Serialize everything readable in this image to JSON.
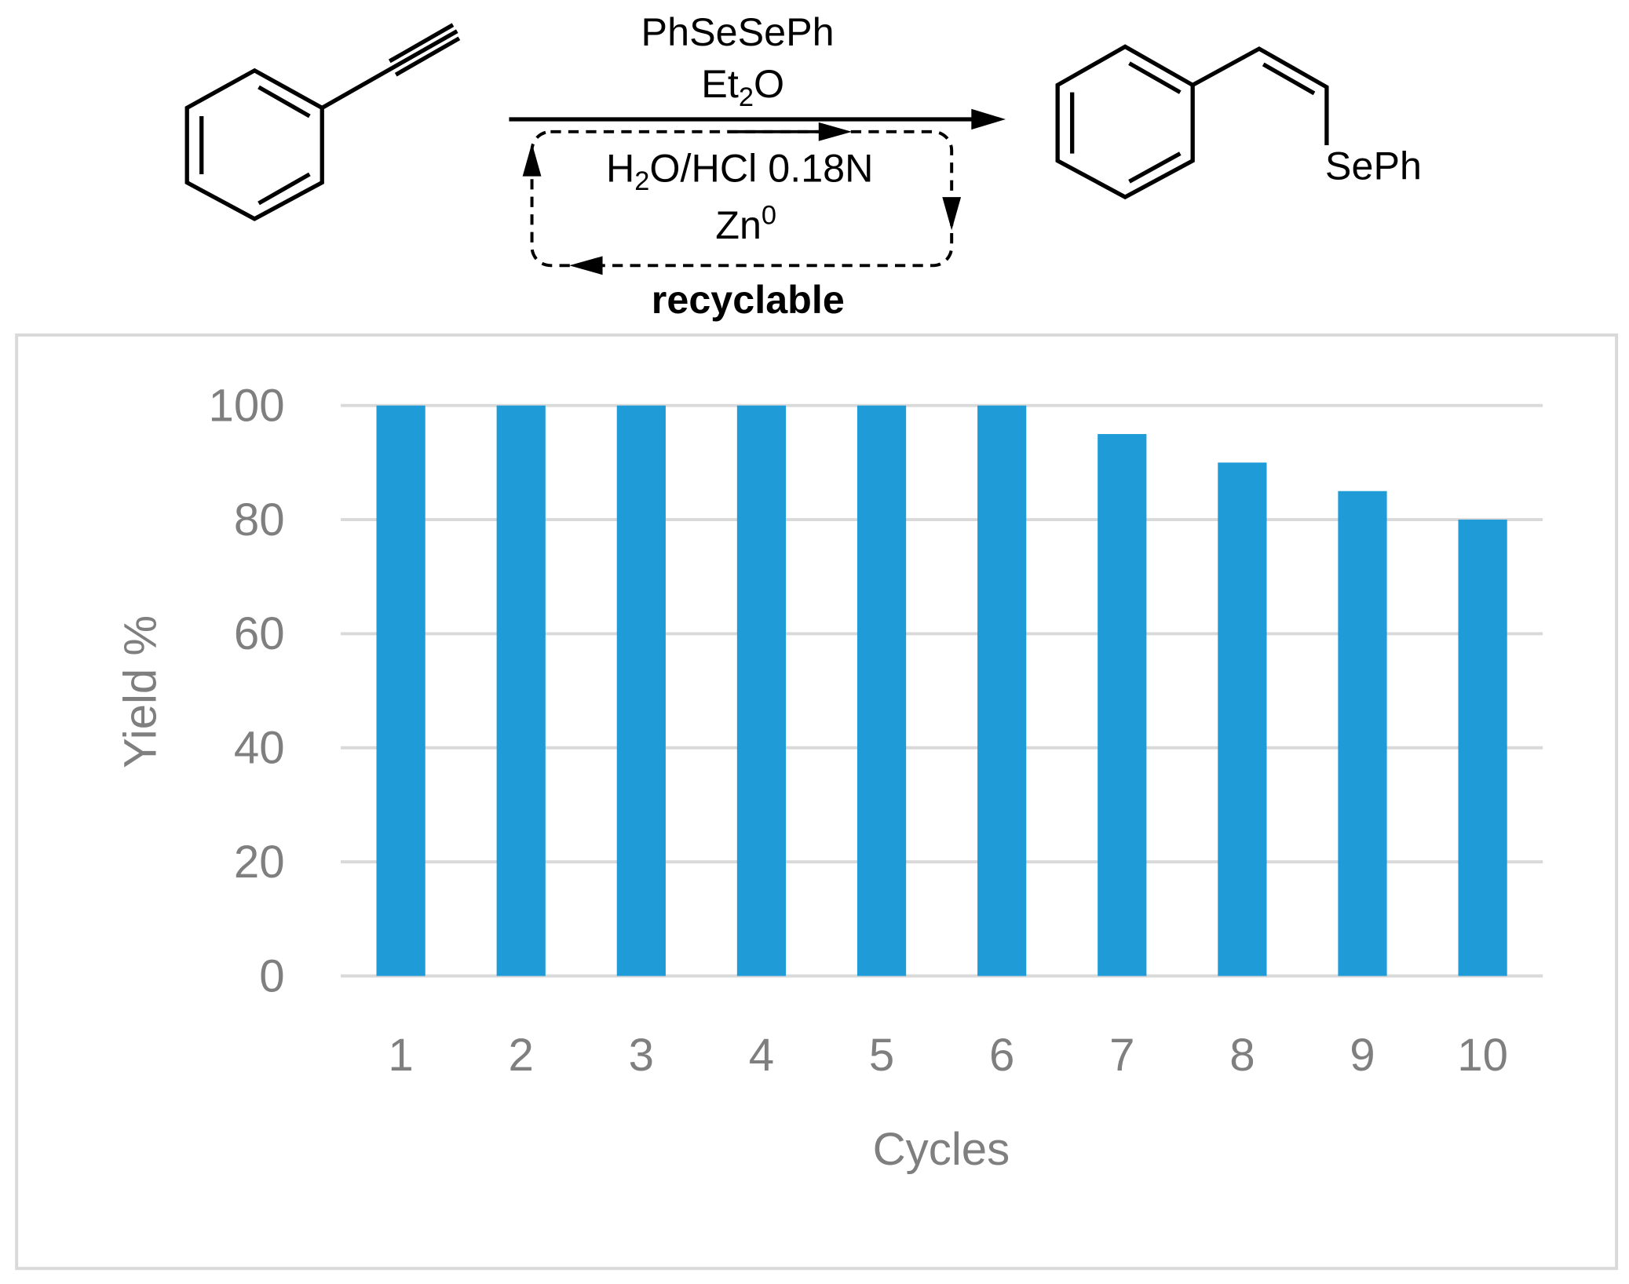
{
  "scheme": {
    "reagent": "PhSeSePh",
    "solvent": [
      "Et",
      "2",
      "O"
    ],
    "acid": [
      "H",
      "2",
      "O/HCl 0.18N"
    ],
    "metal": [
      "Zn",
      "0"
    ],
    "note": "recyclable",
    "product_group": "SePh"
  },
  "chart_data": {
    "type": "bar",
    "x_label": "Cycles",
    "y_label": "Yield %",
    "categories": [
      "1",
      "2",
      "3",
      "4",
      "5",
      "6",
      "7",
      "8",
      "9",
      "10"
    ],
    "values": [
      100,
      100,
      100,
      100,
      100,
      100,
      95,
      90,
      85,
      80
    ],
    "color": "#1f9bd7",
    "ylim": [
      0,
      100
    ],
    "yticks": [
      0,
      20,
      40,
      60,
      80,
      100
    ],
    "grid": true
  }
}
